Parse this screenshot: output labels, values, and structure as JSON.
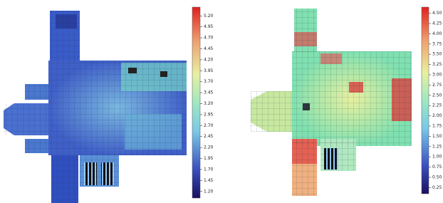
{
  "panels": [
    {
      "colorbar": {
        "lim": [
          1.05,
          5.4
        ],
        "ticks": [
          {
            "value": 1.2,
            "label": "1.20"
          },
          {
            "value": 1.45,
            "label": "1.45"
          },
          {
            "value": 1.7,
            "label": "1.70"
          },
          {
            "value": 1.95,
            "label": "1.95"
          },
          {
            "value": 2.2,
            "label": "2.20"
          },
          {
            "value": 2.45,
            "label": "2.45"
          },
          {
            "value": 2.7,
            "label": "2.70"
          },
          {
            "value": 2.95,
            "label": "2.95"
          },
          {
            "value": 3.2,
            "label": "3.20"
          },
          {
            "value": 3.45,
            "label": "3.45"
          },
          {
            "value": 3.7,
            "label": "3.70"
          },
          {
            "value": 3.95,
            "label": "3.95"
          },
          {
            "value": 4.2,
            "label": "4.20"
          },
          {
            "value": 4.45,
            "label": "4.45"
          },
          {
            "value": 4.7,
            "label": "4.70"
          },
          {
            "value": 4.95,
            "label": "4.95"
          },
          {
            "value": 5.2,
            "label": "5.20"
          }
        ]
      }
    },
    {
      "colorbar": {
        "lim": [
          0.1,
          4.65
        ],
        "ticks": [
          {
            "value": 0.25,
            "label": "0.25"
          },
          {
            "value": 0.5,
            "label": "0.50"
          },
          {
            "value": 0.75,
            "label": "0.75"
          },
          {
            "value": 1.0,
            "label": "1.00"
          },
          {
            "value": 1.25,
            "label": "1.25"
          },
          {
            "value": 1.5,
            "label": "1.50"
          },
          {
            "value": 1.75,
            "label": "1.75"
          },
          {
            "value": 2.0,
            "label": "2.00"
          },
          {
            "value": 2.25,
            "label": "2.25"
          },
          {
            "value": 2.5,
            "label": "2.50"
          },
          {
            "value": 2.75,
            "label": "2.75"
          },
          {
            "value": 3.0,
            "label": "3.00"
          },
          {
            "value": 3.25,
            "label": "3.25"
          },
          {
            "value": 3.5,
            "label": "3.50"
          },
          {
            "value": 3.75,
            "label": "3.75"
          },
          {
            "value": 4.0,
            "label": "4.00"
          },
          {
            "value": 4.25,
            "label": "4.25"
          },
          {
            "value": 4.5,
            "label": "4.50"
          }
        ]
      }
    }
  ]
}
